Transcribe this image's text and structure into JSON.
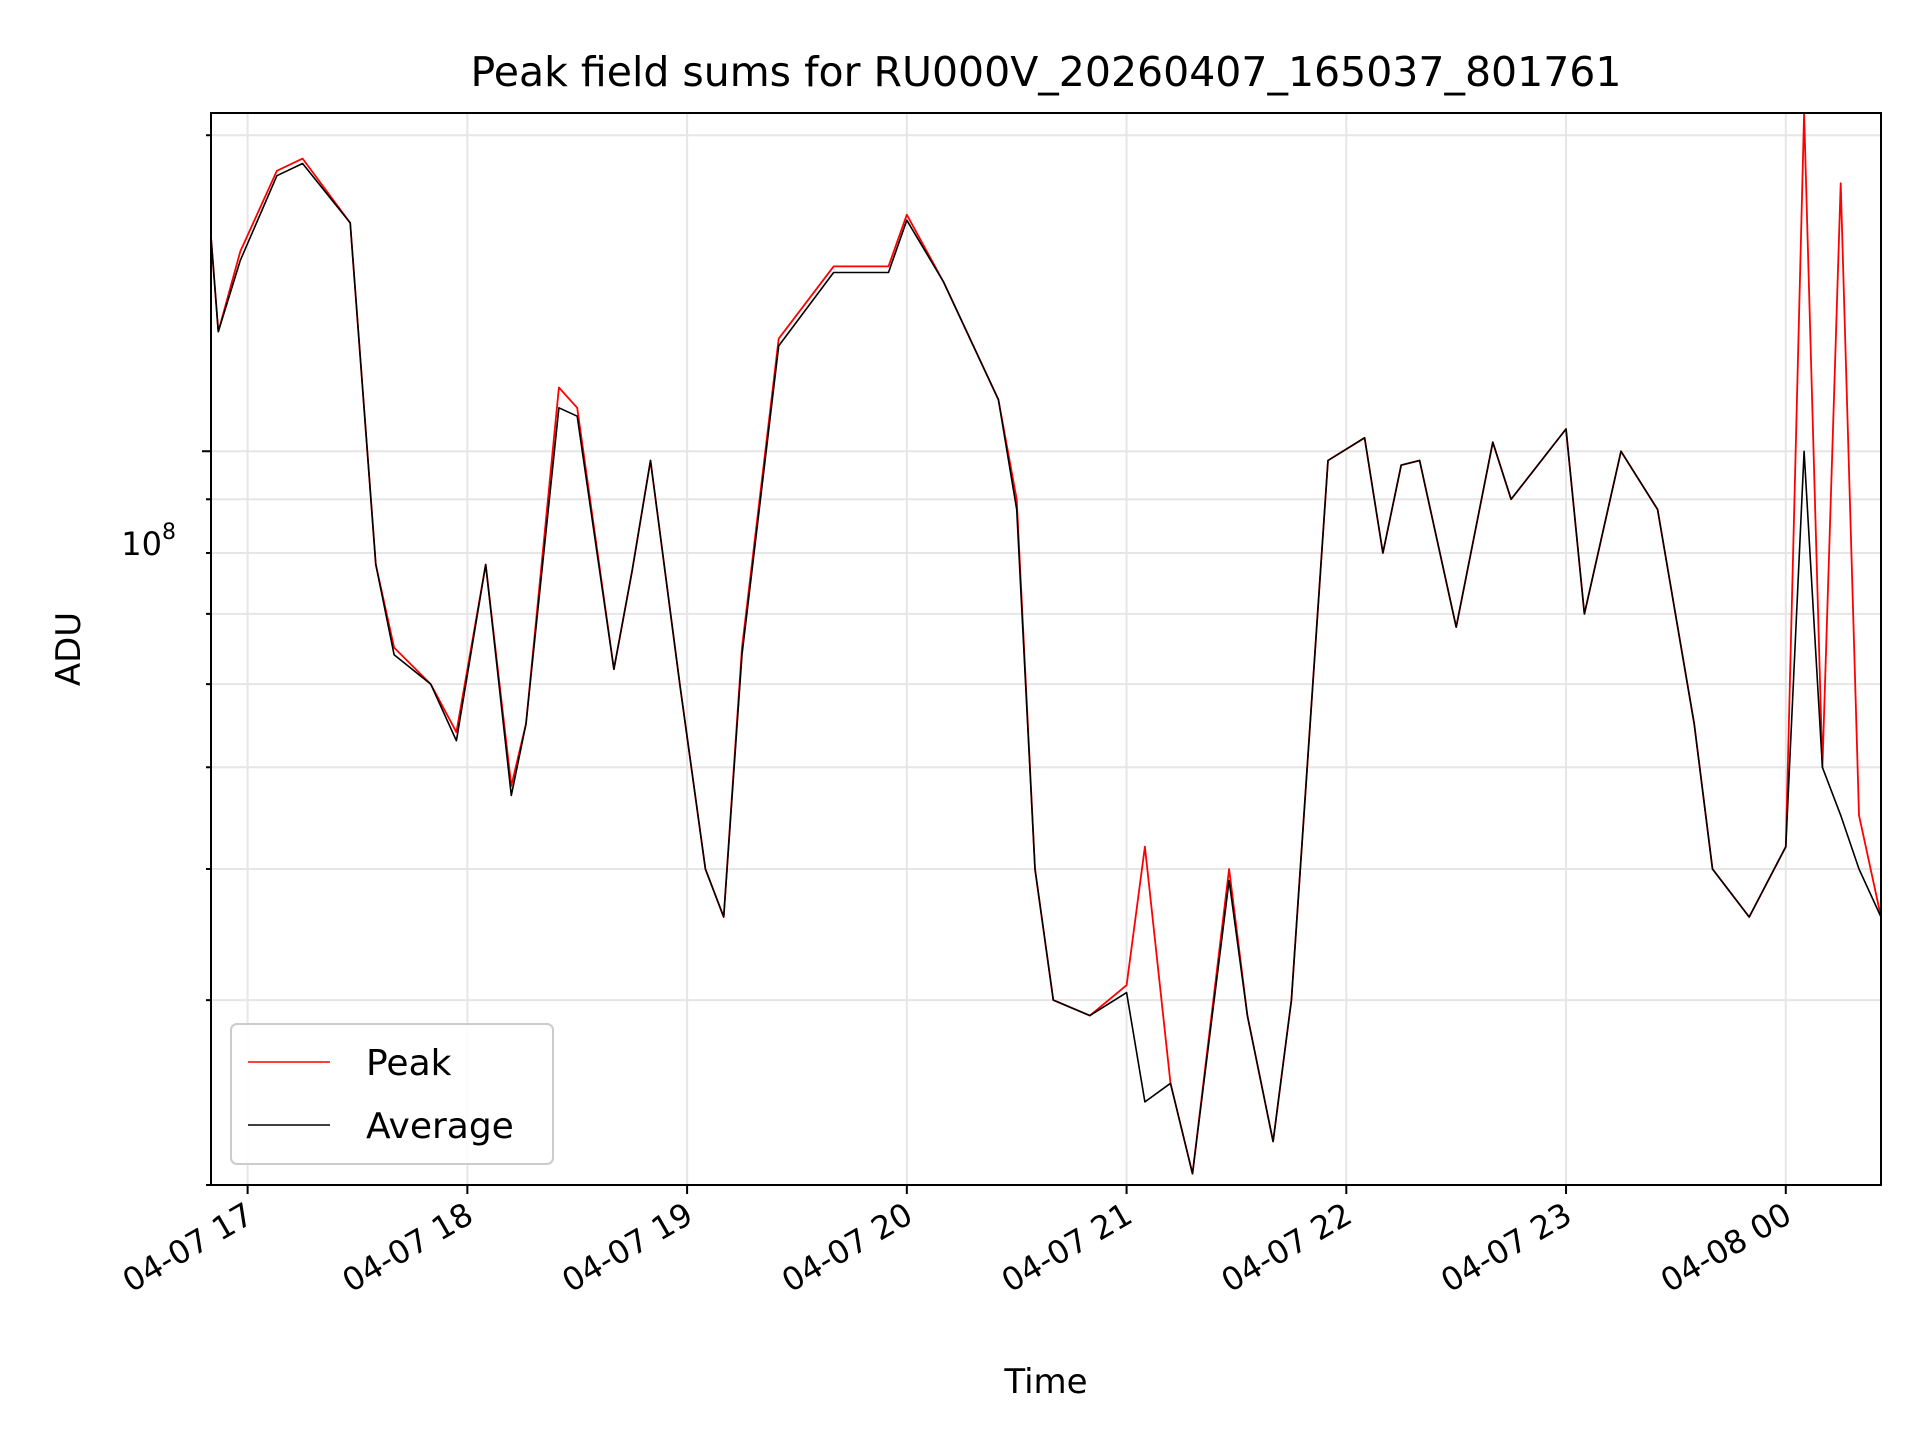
{
  "chart_data": {
    "type": "line",
    "title": "Peak field sums for RU000V_20260407_165037_801761",
    "xlabel": "Time",
    "ylabel": "ADU",
    "yscale": "log",
    "ylim": [
      20000000,
      210000000
    ],
    "xlim": [
      "2026-04-07 16:50",
      "2026-04-08 00:26"
    ],
    "x_ticks": [
      "04-07 17",
      "04-07 18",
      "04-07 19",
      "04-07 20",
      "04-07 21",
      "04-07 22",
      "04-07 23",
      "04-08 00"
    ],
    "y_major_tick": {
      "base": "10",
      "exp": "8"
    },
    "grid": true,
    "legend_position": "lower-left",
    "x": [
      "2026-04-07 16:50",
      "2026-04-07 16:52",
      "2026-04-07 16:58",
      "2026-04-07 17:08",
      "2026-04-07 17:15",
      "2026-04-07 17:28",
      "2026-04-07 17:35",
      "2026-04-07 17:40",
      "2026-04-07 17:50",
      "2026-04-07 17:57",
      "2026-04-07 18:05",
      "2026-04-07 18:12",
      "2026-04-07 18:16",
      "2026-04-07 18:25",
      "2026-04-07 18:30",
      "2026-04-07 18:40",
      "2026-04-07 18:45",
      "2026-04-07 18:50",
      "2026-04-07 18:58",
      "2026-04-07 19:05",
      "2026-04-07 19:10",
      "2026-04-07 19:15",
      "2026-04-07 19:25",
      "2026-04-07 19:40",
      "2026-04-07 19:55",
      "2026-04-07 20:00",
      "2026-04-07 20:10",
      "2026-04-07 20:25",
      "2026-04-07 20:30",
      "2026-04-07 20:35",
      "2026-04-07 20:40",
      "2026-04-07 20:50",
      "2026-04-07 21:00",
      "2026-04-07 21:05",
      "2026-04-07 21:12",
      "2026-04-07 21:18",
      "2026-04-07 21:28",
      "2026-04-07 21:33",
      "2026-04-07 21:40",
      "2026-04-07 21:45",
      "2026-04-07 21:55",
      "2026-04-07 22:05",
      "2026-04-07 22:10",
      "2026-04-07 22:15",
      "2026-04-07 22:20",
      "2026-04-07 22:30",
      "2026-04-07 22:40",
      "2026-04-07 22:45",
      "2026-04-07 23:00",
      "2026-04-07 23:05",
      "2026-04-07 23:15",
      "2026-04-07 23:25",
      "2026-04-07 23:35",
      "2026-04-07 23:40",
      "2026-04-07 23:50",
      "2026-04-08 00:00",
      "2026-04-08 00:05",
      "2026-04-08 00:10",
      "2026-04-08 00:15",
      "2026-04-08 00:20",
      "2026-04-08 00:26"
    ],
    "series": [
      {
        "name": "Peak",
        "color": "#ff0000",
        "values": [
          160000000,
          130000000,
          155000000,
          185000000,
          190000000,
          165000000,
          78000000,
          65000000,
          60000000,
          54000000,
          78000000,
          48000000,
          55000000,
          115000000,
          110000000,
          62000000,
          77000000,
          98000000,
          60000000,
          40000000,
          36000000,
          65000000,
          128000000,
          150000000,
          150000000,
          168000000,
          145000000,
          112000000,
          90000000,
          40000000,
          30000000,
          29000000,
          31000000,
          42000000,
          25000000,
          20500000,
          40000000,
          29000000,
          22000000,
          30000000,
          98000000,
          103000000,
          80000000,
          97000000,
          98000000,
          68000000,
          102000000,
          90000000,
          105000000,
          70000000,
          100000000,
          88000000,
          55000000,
          40000000,
          36000000,
          42000000,
          210000000,
          50000000,
          180000000,
          45000000,
          36000000
        ]
      },
      {
        "name": "Average",
        "color": "#000000",
        "values": [
          160000000,
          130000000,
          152000000,
          183000000,
          188000000,
          165000000,
          78000000,
          64000000,
          60000000,
          53000000,
          78000000,
          47000000,
          55000000,
          110000000,
          108000000,
          62000000,
          77000000,
          98000000,
          60000000,
          40000000,
          36000000,
          64000000,
          126000000,
          148000000,
          148000000,
          166000000,
          145000000,
          112000000,
          88000000,
          40000000,
          30000000,
          29000000,
          30500000,
          24000000,
          25000000,
          20500000,
          39000000,
          29000000,
          22000000,
          30000000,
          98000000,
          103000000,
          80000000,
          97000000,
          98000000,
          68000000,
          102000000,
          90000000,
          105000000,
          70000000,
          100000000,
          88000000,
          55000000,
          40000000,
          36000000,
          42000000,
          100000000,
          50000000,
          45000000,
          40000000,
          36000000
        ]
      }
    ]
  }
}
